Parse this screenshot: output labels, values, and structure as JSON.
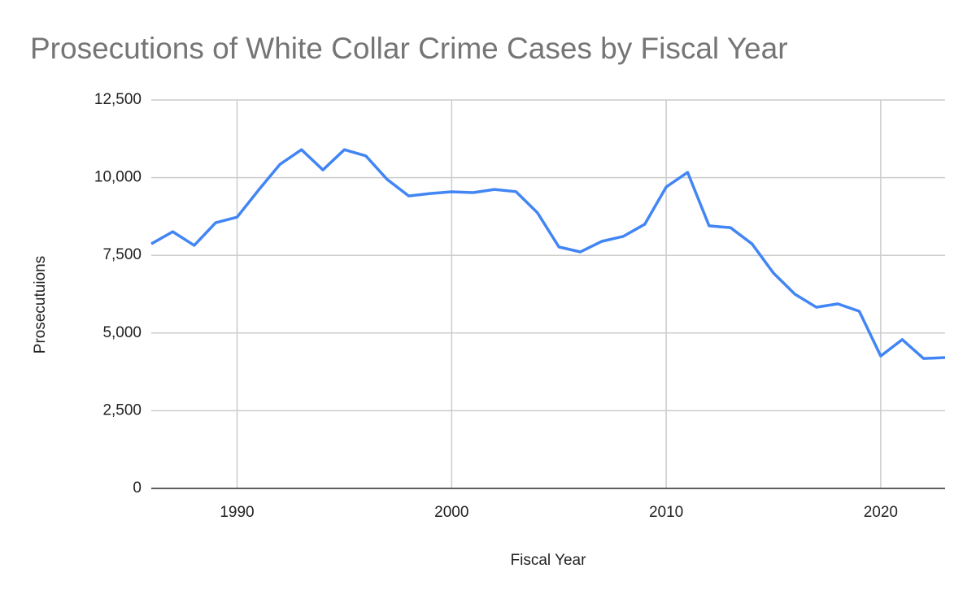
{
  "chart_data": {
    "type": "line",
    "title": "Prosecutions of White Collar Crime Cases by Fiscal Year",
    "x_label": "Fiscal Year",
    "y_label": "Prosecutuions",
    "x": [
      1986,
      1987,
      1988,
      1989,
      1990,
      1991,
      1992,
      1993,
      1994,
      1995,
      1996,
      1997,
      1998,
      1999,
      2000,
      2001,
      2002,
      2003,
      2004,
      2005,
      2006,
      2007,
      2008,
      2009,
      2010,
      2011,
      2012,
      2013,
      2014,
      2015,
      2016,
      2017,
      2018,
      2019,
      2020,
      2021,
      2022,
      2023
    ],
    "values": [
      7870,
      8260,
      7820,
      8550,
      8730,
      9600,
      10430,
      10900,
      10250,
      10900,
      10700,
      9940,
      9410,
      9490,
      9545,
      9520,
      9620,
      9550,
      8870,
      7770,
      7610,
      7950,
      8110,
      8500,
      9700,
      10170,
      8450,
      8390,
      7870,
      6930,
      6250,
      5830,
      5940,
      5700,
      4260,
      4790,
      4180,
      4210
    ],
    "color": "#4285f4",
    "xlim": [
      1986,
      2023
    ],
    "xticks": [
      1990,
      2000,
      2010,
      2020
    ],
    "ylim": [
      0,
      12500
    ],
    "yticks": [
      0,
      {
        "value": 2500,
        "label": "2,500"
      },
      {
        "value": 5000,
        "label": "5,000"
      },
      {
        "value": 7500,
        "label": "7,500"
      },
      {
        "value": 10000,
        "label": "10,000"
      },
      {
        "value": 12500,
        "label": "12,500"
      }
    ],
    "grid": true
  }
}
